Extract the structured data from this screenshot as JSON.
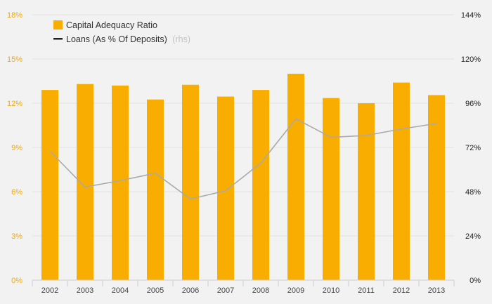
{
  "chart_data": {
    "type": "bar",
    "categories": [
      "2002",
      "2003",
      "2004",
      "2005",
      "2006",
      "2007",
      "2008",
      "2009",
      "2010",
      "2011",
      "2012",
      "2013"
    ],
    "series": [
      {
        "name": "Capital Adequacy Ratio",
        "type": "bar",
        "axis": "left",
        "color": "#f9ad00",
        "values": [
          12.9,
          13.3,
          13.2,
          12.25,
          13.25,
          12.45,
          12.9,
          14.0,
          12.35,
          12.0,
          13.4,
          12.55
        ]
      },
      {
        "name": "Loans (As % Of Deposits)",
        "name_suffix": "(rhs)",
        "type": "line",
        "axis": "right",
        "color": "#aaaaaa",
        "values": [
          70,
          50.5,
          54,
          58,
          44,
          48.5,
          63.5,
          87.5,
          77.5,
          78.5,
          82,
          85
        ]
      }
    ],
    "left_axis": {
      "ylim": [
        0,
        18
      ],
      "ticks": [
        "0%",
        "3%",
        "6%",
        "9%",
        "12%",
        "15%",
        "18%"
      ],
      "color": "#f5a800"
    },
    "right_axis": {
      "ylim": [
        0,
        144
      ],
      "ticks": [
        "0%",
        "24%",
        "48%",
        "72%",
        "96%",
        "120%",
        "144%"
      ],
      "color": "#222222"
    },
    "grid": true,
    "legend_position": "top-left"
  }
}
